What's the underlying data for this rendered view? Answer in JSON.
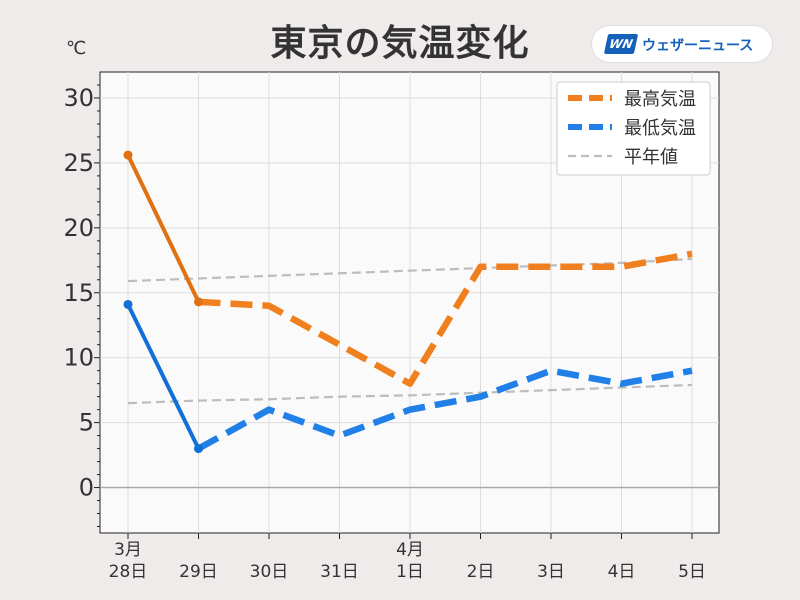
{
  "header": {
    "title": "東京の気温変化",
    "brand": "ウェザーニュース",
    "brand_mark": "WN"
  },
  "chart_data": {
    "type": "line",
    "title": "東京の気温変化",
    "ylabel": "℃",
    "xlabel": "",
    "ylim": [
      -3.5,
      32
    ],
    "yticks": [
      0,
      5,
      10,
      15,
      20,
      25,
      30
    ],
    "grid": true,
    "legend_position": "top-right",
    "categories": [
      [
        "3月",
        "28日"
      ],
      [
        "29日"
      ],
      [
        "30日"
      ],
      [
        "31日"
      ],
      [
        "4月",
        "1日"
      ],
      [
        "2日"
      ],
      [
        "3日"
      ],
      [
        "4日"
      ],
      [
        "5日"
      ]
    ],
    "series": [
      {
        "name": "最高気温",
        "color": "#f0801e",
        "observed_color": "#e07010",
        "values": [
          25.6,
          14.3,
          14.0,
          11.0,
          8.0,
          17.0,
          17.0,
          17.0,
          18.0
        ],
        "observed_until_index": 1
      },
      {
        "name": "最低気温",
        "color": "#2080e8",
        "observed_color": "#1070d8",
        "values": [
          14.1,
          3.0,
          6.0,
          4.0,
          6.0,
          7.0,
          9.0,
          8.0,
          9.0
        ],
        "observed_until_index": 1
      }
    ],
    "normals": {
      "name": "平年値",
      "color": "#bdbdbd",
      "high": [
        15.9,
        16.1,
        16.3,
        16.5,
        16.7,
        16.9,
        17.1,
        17.3,
        17.6
      ],
      "low": [
        6.5,
        6.7,
        6.8,
        7.0,
        7.1,
        7.3,
        7.5,
        7.7,
        7.9
      ]
    }
  }
}
